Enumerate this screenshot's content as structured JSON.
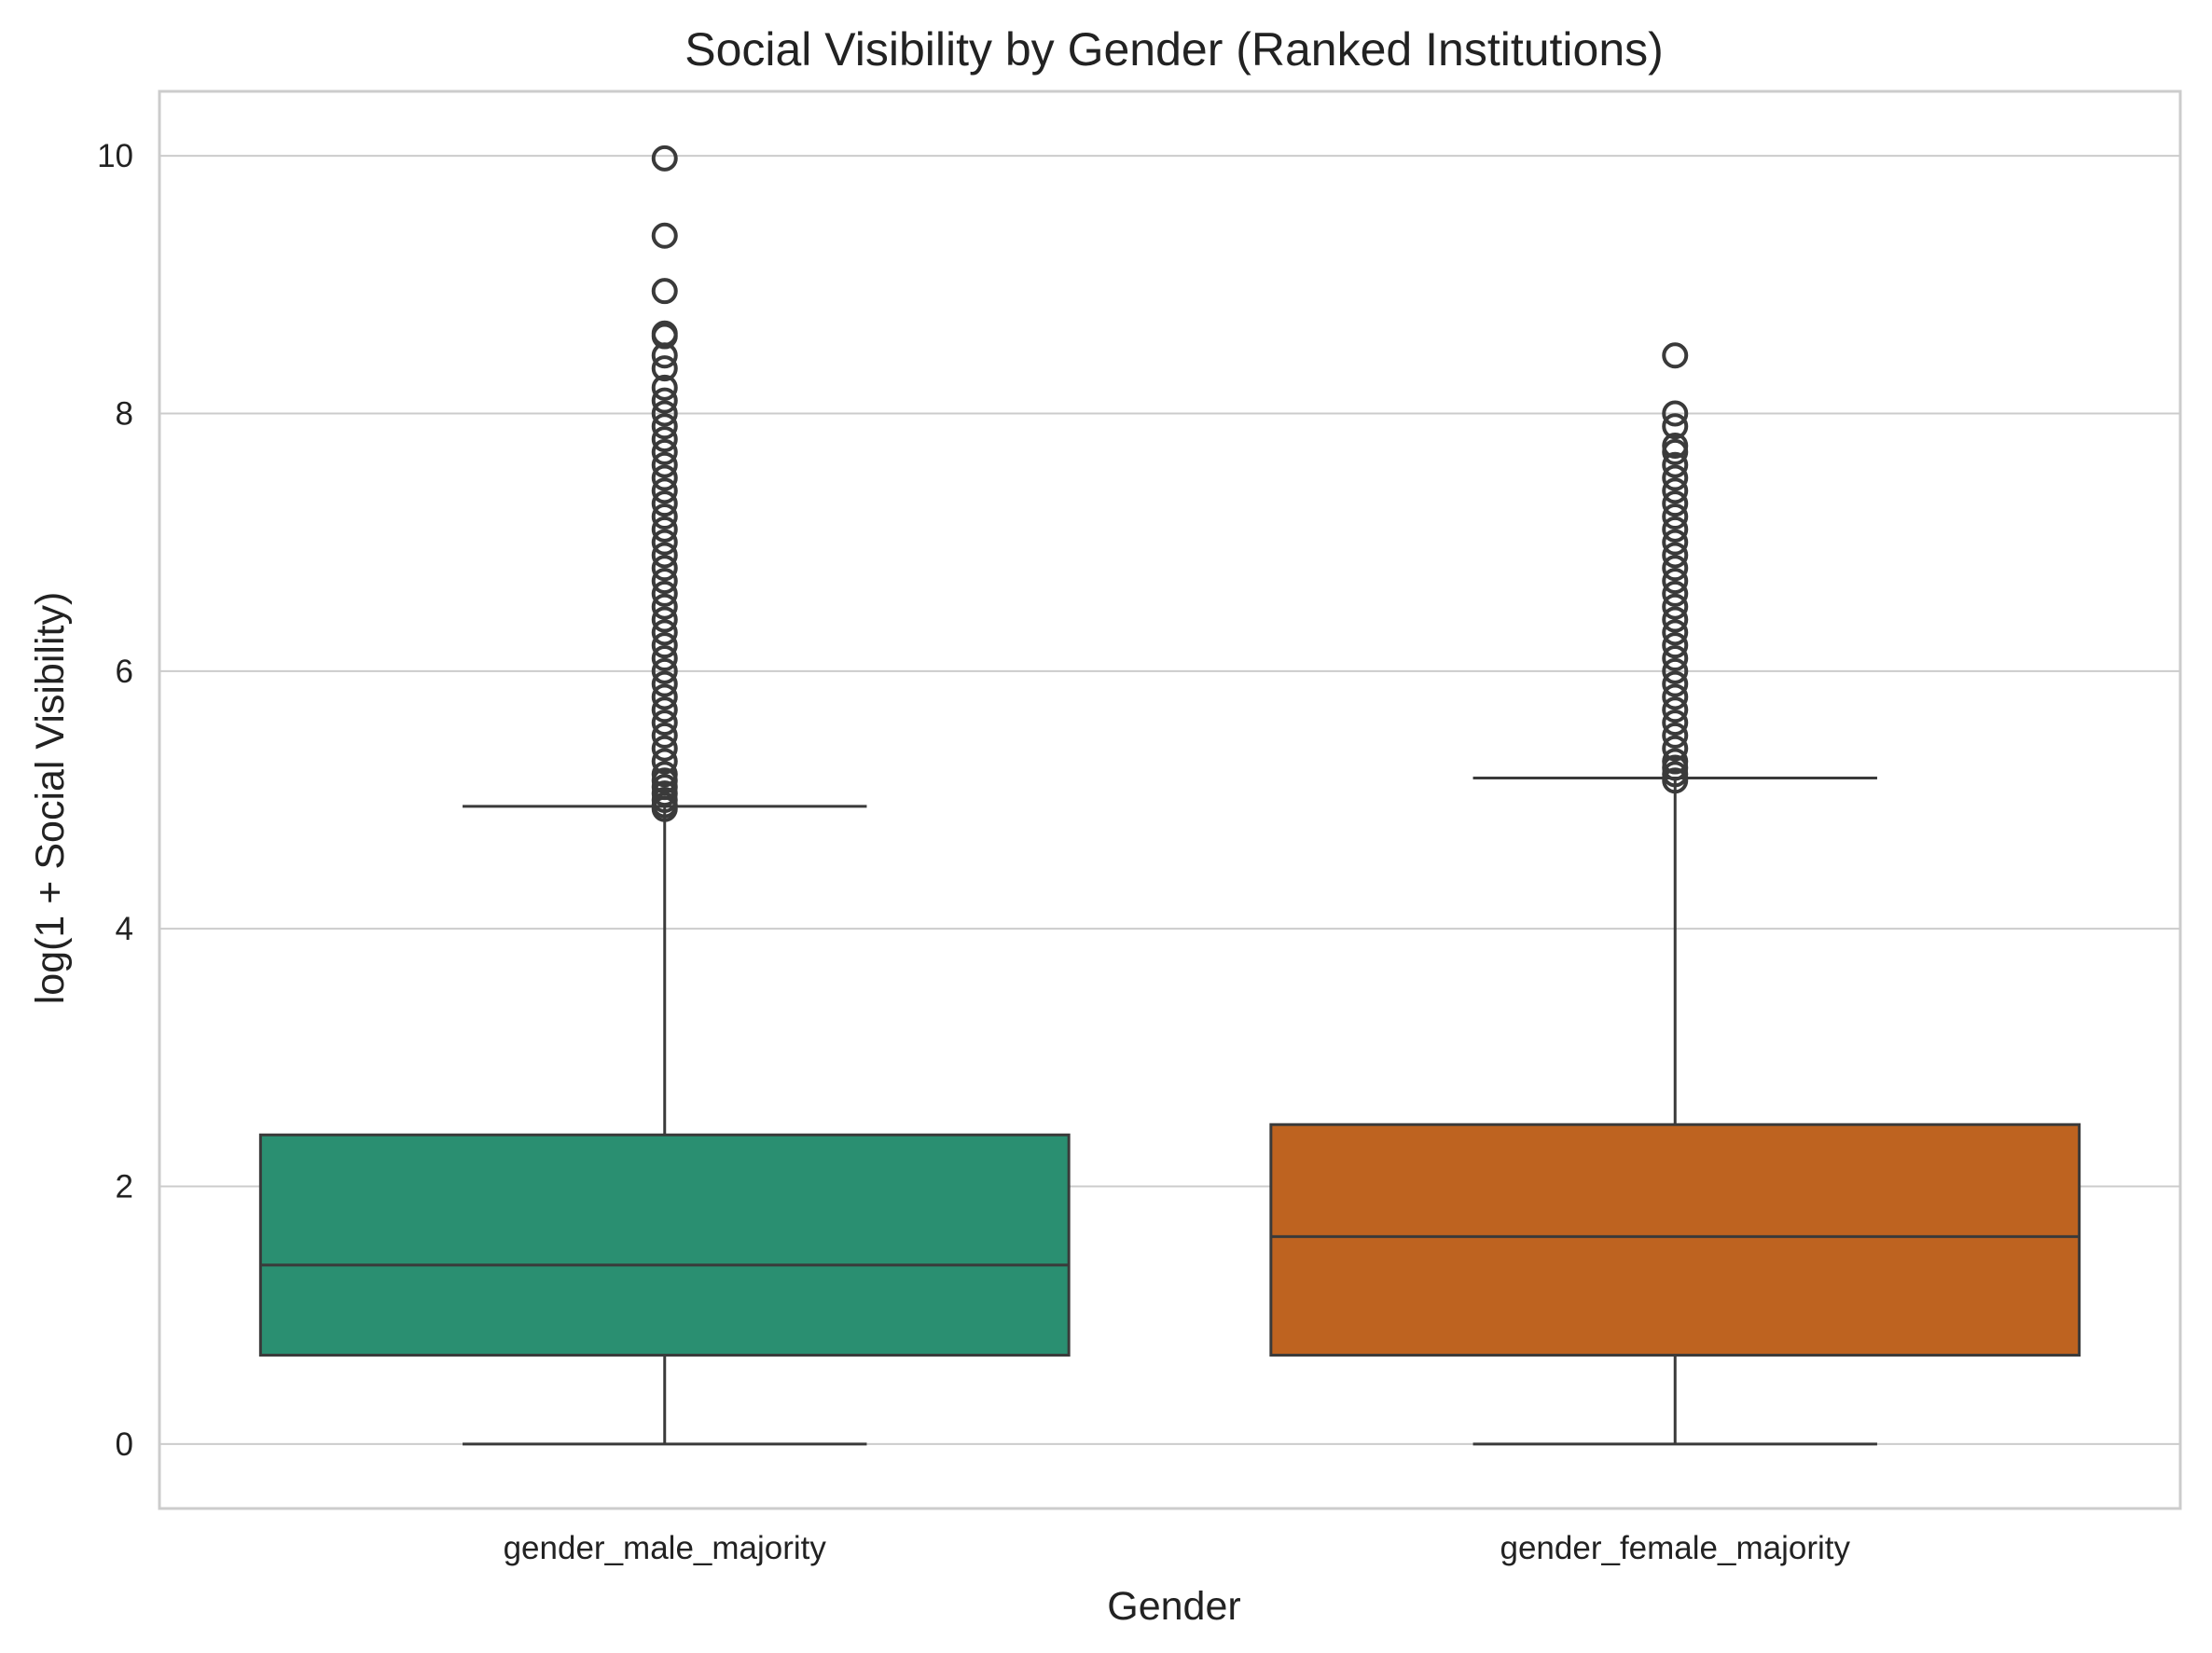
{
  "chart_data": {
    "type": "box",
    "title": "Social Visibility by Gender (Ranked Institutions)",
    "xlabel": "Gender",
    "ylabel": "log(1 + Social Visibility)",
    "ylim": [
      -0.5,
      10.5
    ],
    "yticks": [
      0,
      2,
      4,
      6,
      8,
      10
    ],
    "grid": true,
    "categories": [
      "gender_male_majority",
      "gender_female_majority"
    ],
    "boxes": [
      {
        "category": "gender_male_majority",
        "color": "#2a8f71",
        "whisker_low": 0,
        "q1": 0.69,
        "median": 1.39,
        "q3": 2.4,
        "whisker_high": 4.95,
        "outliers": [
          4.93,
          4.96,
          5.0,
          5.05,
          5.1,
          5.15,
          5.2,
          5.3,
          5.4,
          5.5,
          5.6,
          5.7,
          5.8,
          5.9,
          6.0,
          6.1,
          6.2,
          6.3,
          6.4,
          6.5,
          6.6,
          6.7,
          6.8,
          6.9,
          7.0,
          7.1,
          7.2,
          7.3,
          7.4,
          7.5,
          7.6,
          7.7,
          7.8,
          7.9,
          8.0,
          8.1,
          8.2,
          8.35,
          8.45,
          8.6,
          8.62,
          8.95,
          9.38,
          9.98
        ]
      },
      {
        "category": "gender_female_majority",
        "color": "#be6320",
        "whisker_low": 0,
        "q1": 0.69,
        "median": 1.61,
        "q3": 2.48,
        "whisker_high": 5.17,
        "outliers": [
          5.15,
          5.2,
          5.25,
          5.3,
          5.4,
          5.5,
          5.6,
          5.7,
          5.8,
          5.9,
          6.0,
          6.1,
          6.2,
          6.3,
          6.4,
          6.5,
          6.6,
          6.7,
          6.8,
          6.9,
          7.0,
          7.1,
          7.2,
          7.3,
          7.4,
          7.5,
          7.6,
          7.7,
          7.75,
          7.9,
          8.0,
          8.45
        ]
      }
    ]
  }
}
